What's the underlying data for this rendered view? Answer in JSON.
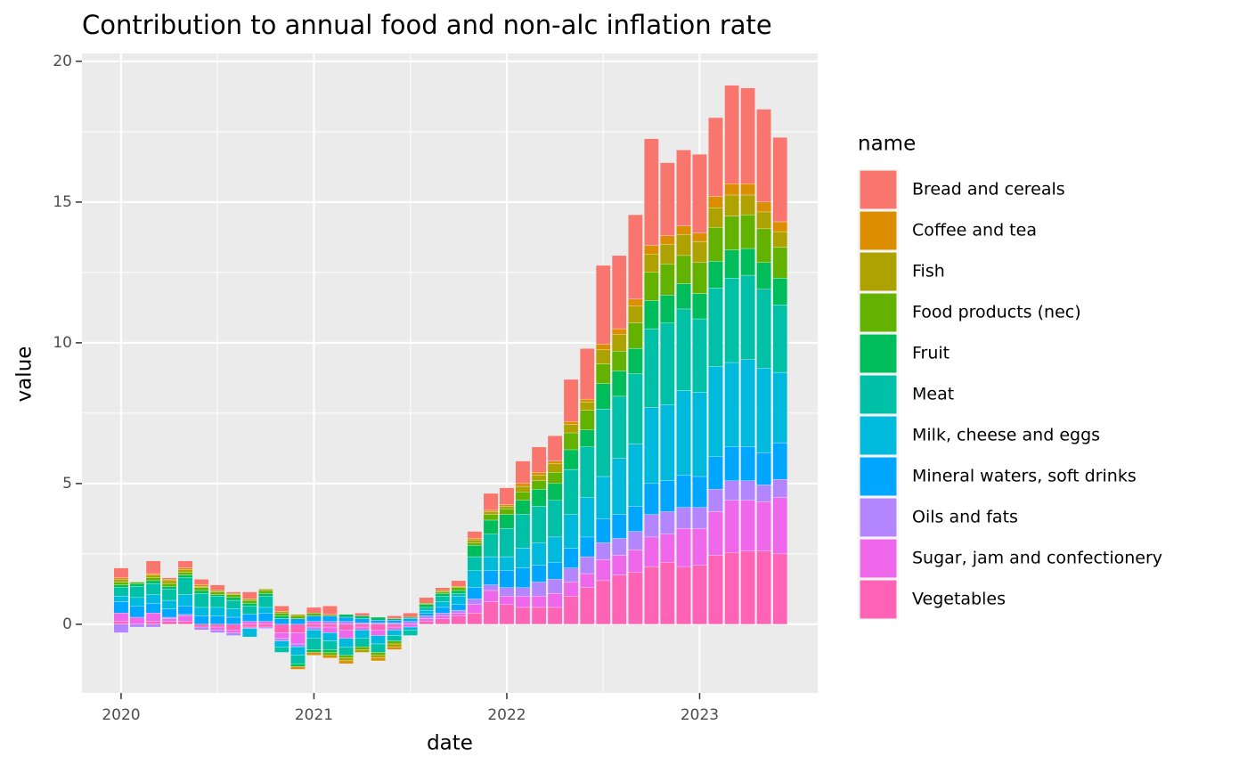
{
  "chart_data": {
    "type": "bar",
    "stacked": true,
    "title": "Contribution to annual food and non-alc inflation rate",
    "x_label": "date",
    "y_label": "value",
    "legend_title": "name",
    "legend_position": "right",
    "grid": true,
    "x": [
      2020.0,
      2020.083,
      2020.167,
      2020.25,
      2020.333,
      2020.417,
      2020.5,
      2020.583,
      2020.667,
      2020.75,
      2020.833,
      2020.917,
      2021.0,
      2021.083,
      2021.167,
      2021.25,
      2021.333,
      2021.417,
      2021.5,
      2021.583,
      2021.667,
      2021.75,
      2021.833,
      2021.917,
      2022.0,
      2022.083,
      2022.167,
      2022.25,
      2022.333,
      2022.417,
      2022.5,
      2022.583,
      2022.667,
      2022.75,
      2022.833,
      2022.917,
      2023.0,
      2023.083,
      2023.167,
      2023.25,
      2023.333,
      2023.417
    ],
    "xlim": [
      2019.797,
      2023.612
    ],
    "xticks": [
      2020,
      2021,
      2022,
      2023
    ],
    "ylim": [
      -2.44,
      20.28
    ],
    "yticks": [
      0,
      5,
      10,
      15,
      20
    ],
    "series": [
      {
        "name": "Bread and cereals",
        "color": "#F8766D",
        "values": [
          0.35,
          0,
          0.45,
          0.05,
          0.25,
          0.2,
          0.2,
          0.05,
          0.25,
          0,
          0.2,
          0,
          0.2,
          0.3,
          0,
          0.1,
          0,
          0.1,
          0.15,
          0.2,
          0.1,
          0.2,
          0.25,
          0.6,
          0.6,
          0.8,
          0.9,
          0.9,
          1.5,
          1.8,
          2.8,
          2.6,
          3.0,
          3.8,
          2.6,
          2.7,
          2.8,
          2.8,
          3.5,
          3.4,
          3.3,
          3.0
        ]
      },
      {
        "name": "Coffee and tea",
        "color": "#DB8E00",
        "values": [
          0.05,
          0,
          0.05,
          0.05,
          0.05,
          0.05,
          0,
          0,
          0,
          0,
          0,
          -0.1,
          -0.1,
          -0.1,
          -0.1,
          0,
          -0.1,
          -0.1,
          0,
          0,
          0,
          0,
          0.05,
          0.05,
          0.05,
          0.1,
          0.1,
          0.1,
          0.1,
          0.1,
          0.2,
          0.2,
          0.25,
          0.3,
          0.3,
          0.3,
          0.3,
          0.4,
          0.4,
          0.4,
          0.35,
          0.35
        ]
      },
      {
        "name": "Fish",
        "color": "#AEA200",
        "values": [
          0.1,
          0,
          0.1,
          0.1,
          0.1,
          0.05,
          0.05,
          0.05,
          0.05,
          0.05,
          0.05,
          0.05,
          0,
          0.05,
          -0.1,
          -0.1,
          -0.1,
          -0.1,
          0,
          0,
          0.05,
          0.05,
          0.1,
          0.1,
          0.1,
          0.2,
          0.2,
          0.3,
          0.3,
          0.3,
          0.5,
          0.6,
          0.6,
          0.65,
          0.7,
          0.75,
          0.75,
          0.7,
          0.75,
          0.7,
          0.6,
          0.55
        ]
      },
      {
        "name": "Food products (nec)",
        "color": "#64B200",
        "values": [
          0.1,
          0.05,
          0.1,
          0.1,
          0.1,
          0.1,
          0.1,
          0.1,
          0.1,
          0.1,
          0.1,
          0.1,
          0.1,
          -0.1,
          -0.1,
          -0.1,
          -0.1,
          -0.1,
          0,
          0.05,
          0.05,
          0.1,
          0.1,
          0.2,
          0.2,
          0.3,
          0.3,
          0.4,
          0.6,
          0.7,
          0.7,
          0.7,
          0.9,
          1.0,
          1.1,
          1.0,
          1.1,
          1.2,
          1.2,
          1.2,
          1.2,
          1.1
        ]
      },
      {
        "name": "Fruit",
        "color": "#00BD5C",
        "values": [
          0.1,
          0.1,
          0.1,
          0.1,
          0.1,
          0.1,
          0.05,
          0.1,
          0.1,
          0.1,
          0.1,
          -0.1,
          -0.1,
          -0.1,
          0.1,
          0.1,
          0.1,
          0.05,
          0.05,
          0.1,
          0.1,
          0.1,
          0.4,
          0.5,
          0.5,
          0.5,
          0.6,
          0.6,
          0.7,
          0.6,
          0.9,
          0.9,
          0.9,
          1.0,
          1.0,
          0.9,
          0.9,
          0.95,
          1.0,
          0.95,
          0.95,
          0.95
        ]
      },
      {
        "name": "Meat",
        "color": "#00C1A7",
        "values": [
          0.3,
          0.4,
          0.4,
          0.4,
          0.6,
          0.5,
          0.4,
          0.3,
          0.3,
          0.4,
          -0.2,
          -0.3,
          -0.4,
          -0.3,
          -0.3,
          -0.3,
          -0.3,
          -0.2,
          -0.2,
          0.1,
          0.2,
          0.1,
          0.5,
          0.8,
          1.0,
          1.2,
          1.3,
          1.3,
          1.6,
          1.8,
          2.4,
          2.2,
          2.5,
          2.8,
          2.9,
          2.9,
          2.6,
          2.8,
          3.0,
          3.0,
          2.8,
          2.4
        ]
      },
      {
        "name": "Milk, cheese and eggs",
        "color": "#00BADE",
        "values": [
          0.2,
          0.3,
          0.3,
          0.3,
          0.4,
          0.3,
          0.3,
          0.3,
          -0.3,
          0.2,
          -0.2,
          -0.3,
          -0.3,
          -0.3,
          -0.3,
          -0.3,
          -0.3,
          -0.2,
          -0.1,
          0.1,
          0.2,
          0.3,
          0.6,
          0.5,
          0.5,
          0.7,
          0.8,
          0.9,
          1.2,
          1.4,
          1.5,
          2.0,
          2.2,
          2.7,
          2.7,
          3.0,
          3.0,
          3.2,
          3.0,
          3.1,
          3.0,
          2.5
        ]
      },
      {
        "name": "Mineral waters, soft drinks",
        "color": "#00A6FF",
        "values": [
          0.4,
          0.4,
          0.35,
          0.3,
          0.3,
          0.3,
          0.3,
          0.25,
          0.25,
          0.3,
          0.2,
          0.2,
          0.2,
          0.2,
          0.15,
          0.15,
          0.1,
          0.1,
          0.1,
          0.1,
          0.2,
          0.2,
          0.4,
          0.5,
          0.6,
          0.7,
          0.6,
          0.6,
          0.7,
          0.7,
          0.85,
          0.85,
          0.9,
          1.1,
          1.1,
          1.15,
          1.1,
          1.15,
          1.2,
          1.2,
          1.15,
          1.3
        ]
      },
      {
        "name": "Oils and fats",
        "color": "#B385FF",
        "values": [
          -0.3,
          -0.1,
          -0.1,
          0.05,
          0.05,
          -0.1,
          -0.1,
          -0.1,
          -0.05,
          -0.05,
          -0.1,
          -0.1,
          -0.1,
          0.1,
          0.1,
          0.05,
          0.05,
          0.05,
          0.1,
          0.1,
          0.1,
          0.1,
          0.2,
          0.2,
          0.3,
          0.3,
          0.5,
          0.5,
          0.5,
          0.6,
          0.6,
          0.6,
          0.65,
          0.8,
          0.8,
          0.75,
          0.75,
          0.8,
          0.7,
          0.7,
          0.6,
          0.65
        ]
      },
      {
        "name": "Sugar, jam and confectionery",
        "color": "#EF67EB",
        "values": [
          0.3,
          0.25,
          0.3,
          0.1,
          0.2,
          0,
          -0.1,
          -0.1,
          0.1,
          0.1,
          -0.2,
          -0.4,
          0.1,
          -0.2,
          -0.3,
          -0.1,
          -0.2,
          -0.1,
          -0.1,
          0.1,
          0.1,
          0.1,
          0.3,
          0.4,
          0.3,
          0.4,
          0.4,
          0.5,
          0.5,
          0.5,
          0.75,
          0.7,
          0.8,
          1.05,
          1.0,
          1.35,
          1.3,
          1.55,
          1.85,
          1.8,
          1.75,
          2.0
        ]
      },
      {
        "name": "Vegetables",
        "color": "#FF63B6",
        "values": [
          0.1,
          0,
          0.1,
          0.1,
          0.1,
          -0.1,
          -0.1,
          -0.2,
          -0.1,
          -0.1,
          -0.3,
          -0.3,
          -0.1,
          -0.1,
          -0.2,
          -0.1,
          -0.2,
          -0.1,
          0,
          0.1,
          0.2,
          0.3,
          0.4,
          0.8,
          0.7,
          0.6,
          0.6,
          0.6,
          1.0,
          1.3,
          1.55,
          1.75,
          1.85,
          2.05,
          2.2,
          2.05,
          2.1,
          2.45,
          2.55,
          2.6,
          2.6,
          2.5
        ]
      }
    ]
  }
}
